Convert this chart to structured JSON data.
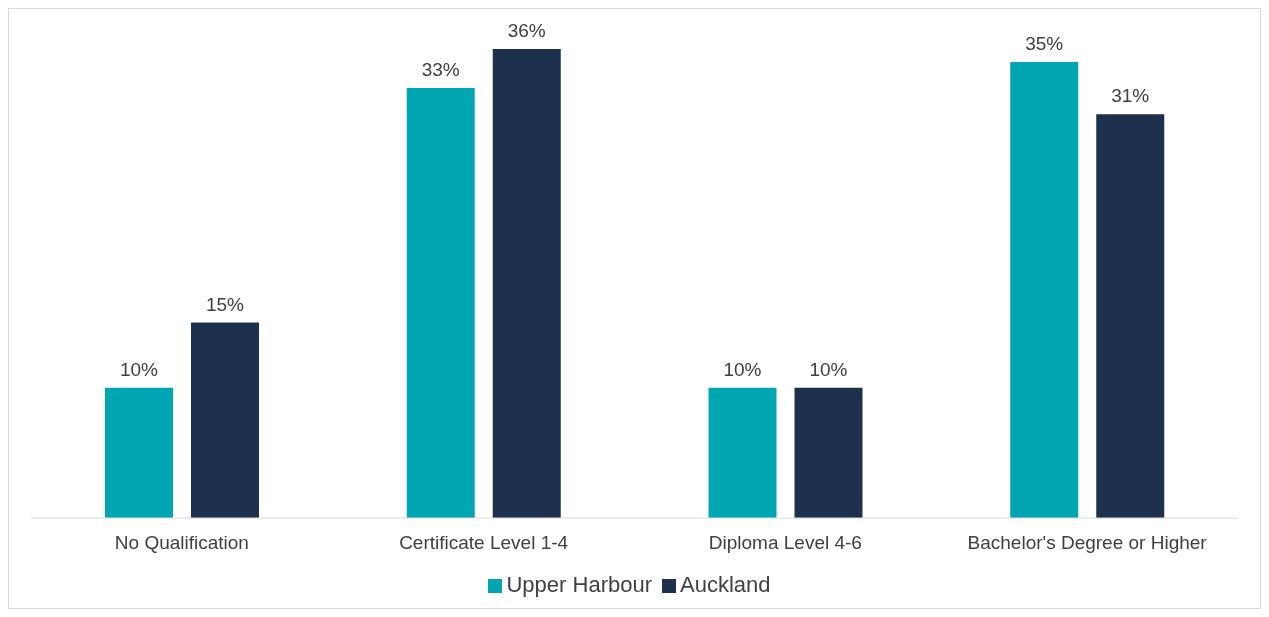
{
  "chart_data": {
    "type": "bar",
    "categories": [
      "No Qualification",
      "Certificate Level 1-4",
      "Diploma Level 4-6",
      "Bachelor's Degree or Higher"
    ],
    "series": [
      {
        "name": "Upper Harbour",
        "color": "#00a7b3",
        "values": [
          10,
          33,
          10,
          35
        ],
        "value_labels": [
          "10%",
          "33%",
          "10%",
          "35%"
        ]
      },
      {
        "name": "Auckland",
        "color": "#1d304d",
        "values": [
          15,
          36,
          10,
          31
        ],
        "value_labels": [
          "15%",
          "36%",
          "10%",
          "31%"
        ]
      }
    ],
    "legend": "bottom",
    "grid": false
  }
}
